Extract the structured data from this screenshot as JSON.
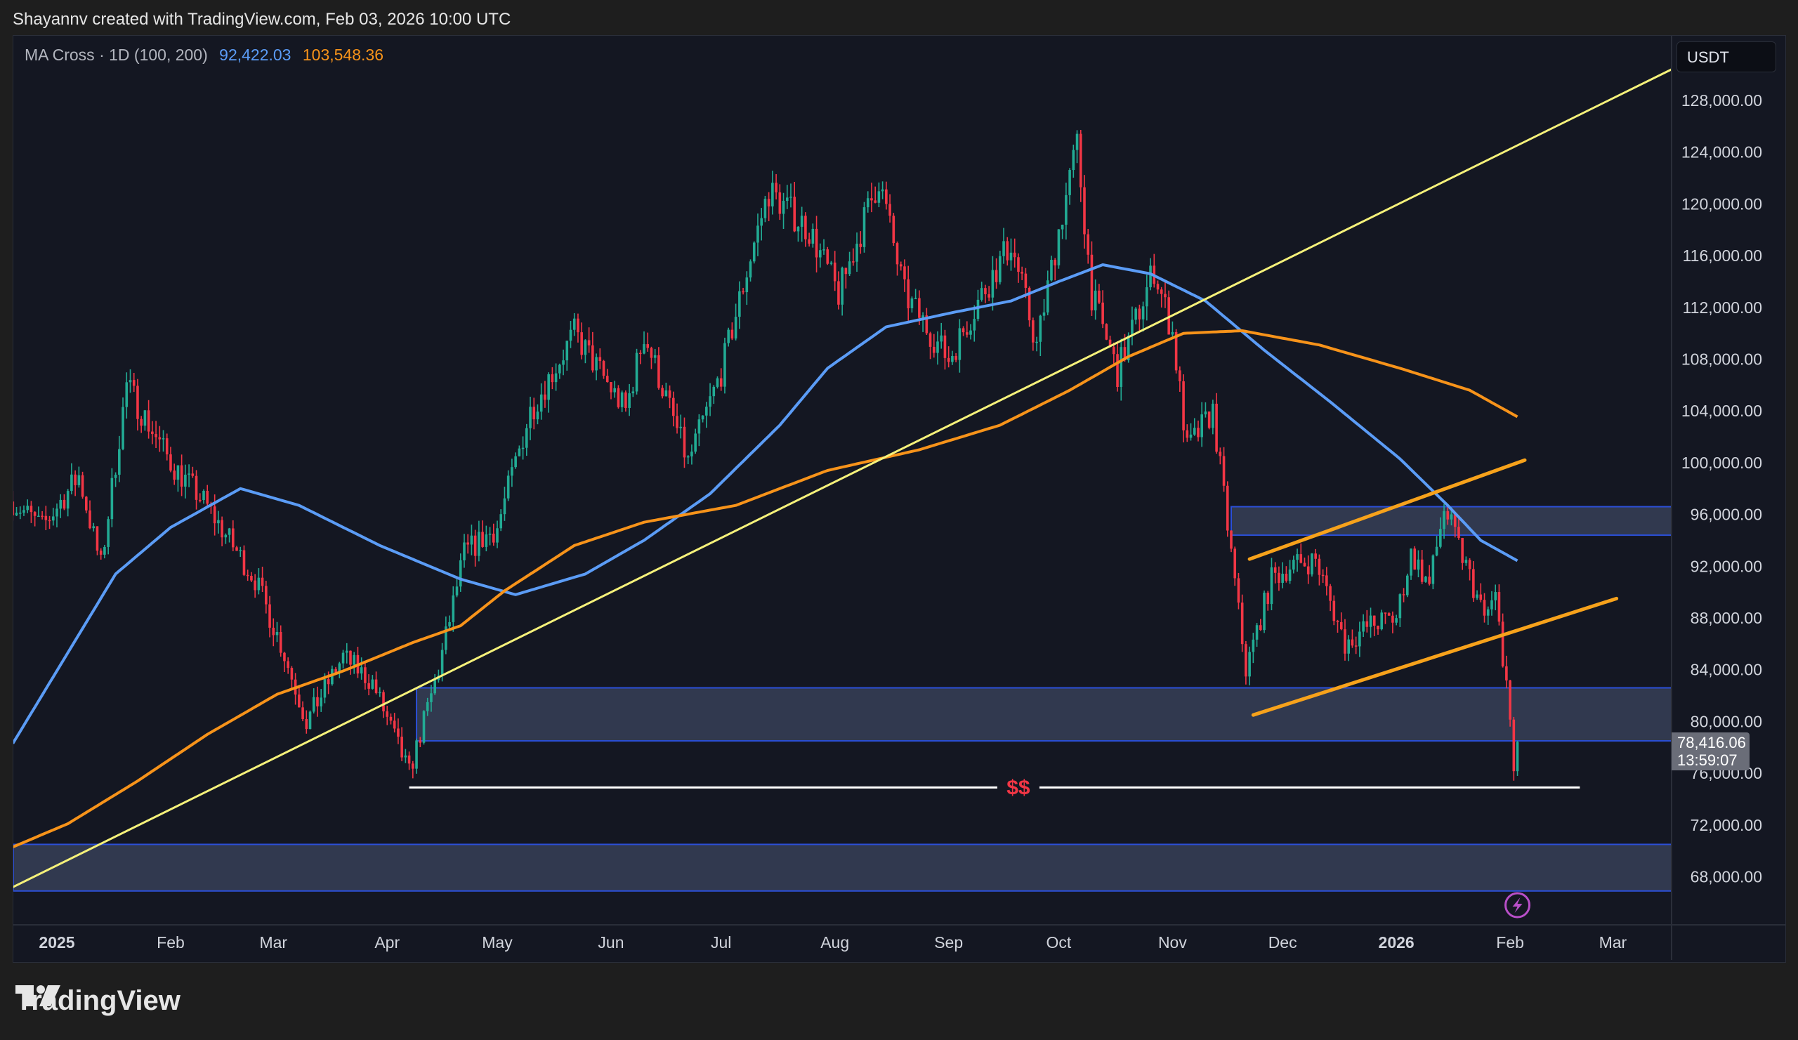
{
  "header": {
    "attribution": "Shayannv created with TradingView.com, Feb 03, 2026 10:00 UTC"
  },
  "legend": {
    "indicator": "MA Cross · 1D (100, 200)",
    "ma_fast_value": "92,422.03",
    "ma_slow_value": "103,548.36"
  },
  "price_axis": {
    "currency": "USDT",
    "last_price": "78,416.06",
    "countdown": "13:59:07"
  },
  "footer": {
    "logo_text": "TradingView"
  },
  "icons": {
    "event_marker": "lightning-icon"
  },
  "chart_data": {
    "type": "candlestick",
    "title": "",
    "ylim": [
      65500,
      131000
    ],
    "grid": false,
    "y_ticks": [
      {
        "value": 128000,
        "label": "128,000.00"
      },
      {
        "value": 124000,
        "label": "124,000.00"
      },
      {
        "value": 120000,
        "label": "120,000.00"
      },
      {
        "value": 116000,
        "label": "116,000.00"
      },
      {
        "value": 112000,
        "label": "112,000.00"
      },
      {
        "value": 108000,
        "label": "108,000.00"
      },
      {
        "value": 104000,
        "label": "104,000.00"
      },
      {
        "value": 100000,
        "label": "100,000.00"
      },
      {
        "value": 96000,
        "label": "96,000.00"
      },
      {
        "value": 92000,
        "label": "92,000.00"
      },
      {
        "value": 88000,
        "label": "88,000.00"
      },
      {
        "value": 84000,
        "label": "84,000.00"
      },
      {
        "value": 80000,
        "label": "80,000.00"
      },
      {
        "value": 76000,
        "label": "76,000.00"
      },
      {
        "value": 72000,
        "label": "72,000.00"
      },
      {
        "value": 68000,
        "label": "68,000.00"
      }
    ],
    "x_ticks": [
      {
        "date": "2025-01-01",
        "label": "2025",
        "bold": true
      },
      {
        "date": "2025-02-01",
        "label": "Feb"
      },
      {
        "date": "2025-03-01",
        "label": "Mar"
      },
      {
        "date": "2025-04-01",
        "label": "Apr"
      },
      {
        "date": "2025-05-01",
        "label": "May"
      },
      {
        "date": "2025-06-01",
        "label": "Jun"
      },
      {
        "date": "2025-07-01",
        "label": "Jul"
      },
      {
        "date": "2025-08-01",
        "label": "Aug"
      },
      {
        "date": "2025-09-01",
        "label": "Sep"
      },
      {
        "date": "2025-10-01",
        "label": "Oct"
      },
      {
        "date": "2025-11-01",
        "label": "Nov"
      },
      {
        "date": "2025-12-01",
        "label": "Dec"
      },
      {
        "date": "2026-01-01",
        "label": "2026",
        "bold": true
      },
      {
        "date": "2026-02-01",
        "label": "Feb"
      },
      {
        "date": "2026-03-01",
        "label": "Mar"
      }
    ],
    "price_path": [
      [
        "2024-12-20",
        97000
      ],
      [
        "2024-12-28",
        95000
      ],
      [
        "2025-01-07",
        99000
      ],
      [
        "2025-01-13",
        92000
      ],
      [
        "2025-01-20",
        106000
      ],
      [
        "2025-02-01",
        100000
      ],
      [
        "2025-02-10",
        97000
      ],
      [
        "2025-02-24",
        91000
      ],
      [
        "2025-03-03",
        86000
      ],
      [
        "2025-03-10",
        80000
      ],
      [
        "2025-03-20",
        85000
      ],
      [
        "2025-03-28",
        83000
      ],
      [
        "2025-04-07",
        76000
      ],
      [
        "2025-04-15",
        84000
      ],
      [
        "2025-04-22",
        93000
      ],
      [
        "2025-05-01",
        95000
      ],
      [
        "2025-05-10",
        104000
      ],
      [
        "2025-05-22",
        110000
      ],
      [
        "2025-06-05",
        104000
      ],
      [
        "2025-06-10",
        110000
      ],
      [
        "2025-06-22",
        100000
      ],
      [
        "2025-07-01",
        107000
      ],
      [
        "2025-07-10",
        117000
      ],
      [
        "2025-07-14",
        121000
      ],
      [
        "2025-07-25",
        118000
      ],
      [
        "2025-08-02",
        113000
      ],
      [
        "2025-08-13",
        122000
      ],
      [
        "2025-08-20",
        113000
      ],
      [
        "2025-09-01",
        108000
      ],
      [
        "2025-09-10",
        113000
      ],
      [
        "2025-09-18",
        117000
      ],
      [
        "2025-09-25",
        109000
      ],
      [
        "2025-10-01",
        118000
      ],
      [
        "2025-10-06",
        124500
      ],
      [
        "2025-10-10",
        113000
      ],
      [
        "2025-10-17",
        107000
      ],
      [
        "2025-10-27",
        115000
      ],
      [
        "2025-11-01",
        110000
      ],
      [
        "2025-11-05",
        101000
      ],
      [
        "2025-11-12",
        104000
      ],
      [
        "2025-11-21",
        84000
      ],
      [
        "2025-11-28",
        91000
      ],
      [
        "2025-12-03",
        92000
      ],
      [
        "2025-12-10",
        92500
      ],
      [
        "2025-12-18",
        86000
      ],
      [
        "2025-12-25",
        87500
      ],
      [
        "2026-01-01",
        88000
      ],
      [
        "2026-01-05",
        93000
      ],
      [
        "2026-01-10",
        90500
      ],
      [
        "2026-01-14",
        96500
      ],
      [
        "2026-01-20",
        92000
      ],
      [
        "2026-01-25",
        88000
      ],
      [
        "2026-01-28",
        89500
      ],
      [
        "2026-01-31",
        83000
      ],
      [
        "2026-02-02",
        76000
      ],
      [
        "2026-02-03",
        78416.06
      ]
    ],
    "series": [
      {
        "name": "MA 100",
        "color": "#5b9cf6",
        "points": [
          [
            "2024-12-20",
            78300
          ],
          [
            "2025-01-17",
            91400
          ],
          [
            "2025-02-01",
            95000
          ],
          [
            "2025-02-20",
            98000
          ],
          [
            "2025-03-08",
            96700
          ],
          [
            "2025-03-30",
            93600
          ],
          [
            "2025-04-21",
            91000
          ],
          [
            "2025-05-06",
            89800
          ],
          [
            "2025-05-25",
            91400
          ],
          [
            "2025-06-10",
            94000
          ],
          [
            "2025-06-28",
            97600
          ],
          [
            "2025-07-17",
            102900
          ],
          [
            "2025-07-30",
            107300
          ],
          [
            "2025-08-15",
            110500
          ],
          [
            "2025-09-02",
            111600
          ],
          [
            "2025-09-18",
            112500
          ],
          [
            "2025-10-01",
            114000
          ],
          [
            "2025-10-13",
            115300
          ],
          [
            "2025-10-26",
            114600
          ],
          [
            "2025-11-10",
            112500
          ],
          [
            "2025-11-26",
            108700
          ],
          [
            "2025-12-14",
            104700
          ],
          [
            "2026-01-02",
            100300
          ],
          [
            "2026-01-15",
            96700
          ],
          [
            "2026-01-24",
            94000
          ],
          [
            "2026-02-03",
            92422
          ]
        ]
      },
      {
        "name": "MA 200",
        "color": "#f7931a",
        "points": [
          [
            "2024-12-20",
            70300
          ],
          [
            "2025-01-04",
            72100
          ],
          [
            "2025-01-23",
            75400
          ],
          [
            "2025-02-11",
            79000
          ],
          [
            "2025-03-02",
            82100
          ],
          [
            "2025-03-20",
            83900
          ],
          [
            "2025-04-08",
            86100
          ],
          [
            "2025-04-21",
            87400
          ],
          [
            "2025-05-03",
            90100
          ],
          [
            "2025-05-22",
            93600
          ],
          [
            "2025-06-10",
            95400
          ],
          [
            "2025-07-05",
            96700
          ],
          [
            "2025-07-30",
            99400
          ],
          [
            "2025-08-24",
            101000
          ],
          [
            "2025-09-15",
            102900
          ],
          [
            "2025-10-04",
            105600
          ],
          [
            "2025-10-20",
            108200
          ],
          [
            "2025-11-04",
            110000
          ],
          [
            "2025-11-20",
            110200
          ],
          [
            "2025-12-11",
            109100
          ],
          [
            "2026-01-02",
            107300
          ],
          [
            "2026-01-21",
            105600
          ],
          [
            "2026-02-03",
            103548
          ]
        ]
      }
    ],
    "zones": [
      {
        "from": "2025-11-17",
        "to": "end",
        "low": 94400,
        "high": 96600
      },
      {
        "from": "2025-04-09",
        "to": "end",
        "low": 78500,
        "high": 82600
      },
      {
        "from": "start",
        "to": "end",
        "low": 66900,
        "high": 70500
      }
    ],
    "trendlines": [
      {
        "color": "#f5f17a",
        "from": [
          "2024-12-20",
          67200
        ],
        "to": [
          "2026-03-17",
          130400
        ]
      },
      {
        "color": "#f7a21b",
        "from": [
          "2025-11-22",
          92550
        ],
        "to": [
          "2026-02-05",
          100200
        ]
      },
      {
        "color": "#f7a21b",
        "from": [
          "2025-11-23",
          80500
        ],
        "to": [
          "2026-03-02",
          89500
        ]
      }
    ],
    "liquidity_line": {
      "label": "$$",
      "price": 74900,
      "from": "2025-04-07",
      "to": "2026-02-20",
      "label_date": "2025-09-20"
    },
    "colors": {
      "up": "#22ab94",
      "down": "#f23645",
      "zone_fill": "#363f57",
      "zone_border": "#2b4fd8",
      "background": "#141722"
    }
  }
}
